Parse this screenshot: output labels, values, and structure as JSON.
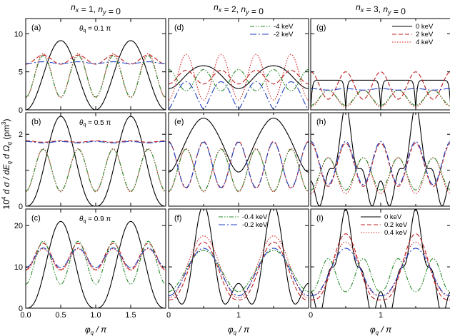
{
  "chart_data": {
    "type": "line",
    "rows": 3,
    "cols": 3,
    "column_titles": [
      "n_x = 1,  n_y = 0",
      "n_x = 2,  n_y = 0",
      "n_x = 3,  n_y = 0"
    ],
    "xlabel": "φ_q / π",
    "ylabel": "10^4 d σ / dE_q d Ω_q (pm^3)",
    "xlim": [
      0,
      2
    ],
    "xticks_col0": [
      "0.0",
      "0.5",
      "1.0",
      "1.5"
    ],
    "xticks_other": [
      "0",
      "1"
    ],
    "grid": false,
    "series_styles": [
      {
        "color": "#000000",
        "dash": ""
      },
      {
        "color": "#c02020",
        "dash": "6,3"
      },
      {
        "color": "#d02020",
        "dash": "1.5,2"
      },
      {
        "color": "#2a8a2a",
        "dash": "6,2,1.5,2,1.5,2"
      },
      {
        "color": "#2040c0",
        "dash": "9,3,2,3"
      }
    ],
    "rows_data": [
      {
        "ylim": [
          0,
          12
        ],
        "yticks": [
          0,
          5,
          10
        ],
        "annotation": "θ_q = 0.1 π",
        "legend": {
          "col": 1,
          "position": "top-right",
          "entries": [
            {
              "series": 3,
              "label": "-4 keV"
            },
            {
              "series": 4,
              "label": "-2 keV"
            }
          ]
        },
        "legend2": {
          "col": 2,
          "position": "top-right",
          "entries": [
            {
              "series": 0,
              "label": "0 keV"
            },
            {
              "series": 1,
              "label": "2 keV"
            },
            {
              "series": 2,
              "label": "4 keV"
            }
          ]
        }
      },
      {
        "ylim": [
          0,
          2.6
        ],
        "yticks": [
          0,
          1,
          2
        ],
        "yticklabels": [
          "0",
          "",
          "2"
        ],
        "annotation": "θ_q = 0.5 π"
      },
      {
        "ylim": [
          0,
          24
        ],
        "yticks": [
          0,
          10,
          20
        ],
        "annotation": "θ_q = 0.9 π",
        "legend": {
          "col": 1,
          "position": "top-center",
          "entries": [
            {
              "series": 3,
              "label": "-0.4 keV"
            },
            {
              "series": 4,
              "label": "-0.2 keV"
            }
          ]
        },
        "legend2": {
          "col": 2,
          "position": "top-center",
          "entries": [
            {
              "series": 0,
              "label": "0 keV"
            },
            {
              "series": 1,
              "label": "0.2 keV"
            },
            {
              "series": 2,
              "label": "0.4 keV"
            }
          ]
        }
      }
    ],
    "panels": [
      {
        "label": "(a)",
        "row": 0,
        "col": 0,
        "series": [
          {
            "type": "lobe",
            "n": 2,
            "base": 0,
            "amp": 9.1,
            "p": 1
          },
          {
            "type": "wave",
            "mean": 6.6,
            "amp": 0.6,
            "k": 4,
            "ph": 3.1416
          },
          {
            "type": "wave",
            "mean": 4.5,
            "amp": 2.9,
            "k": 4,
            "ph": 3.1416
          },
          {
            "type": "wave",
            "mean": 4.4,
            "amp": 2.7,
            "k": 4,
            "ph": 3.1416
          },
          {
            "type": "wave",
            "mean": 6.2,
            "amp": 0.12,
            "k": 4,
            "ph": 3.1416
          }
        ]
      },
      {
        "label": "(d)",
        "row": 0,
        "col": 1,
        "series": [
          {
            "type": "blend",
            "parts": [
              {
                "type": "lobe",
                "n": 2,
                "base": 3.0,
                "amp": 3.0,
                "p": 2
              },
              {
                "type": "wave",
                "mean": 0.3,
                "amp": 0.5,
                "k": 4,
                "ph": 3.1416
              }
            ]
          },
          {
            "type": "wave",
            "mean": 4.3,
            "amp": 0.9,
            "k": 4,
            "ph": 3.1416
          },
          {
            "type": "wave",
            "mean": 4.3,
            "amp": 3.0,
            "k": 4,
            "ph": 3.1416
          },
          {
            "type": "wave",
            "mean": 3.9,
            "amp": 1.4,
            "k": 4,
            "ph": 0
          },
          {
            "type": "lobe",
            "n": 4,
            "base": 0.1,
            "amp": 3.6,
            "p": 0.7
          }
        ]
      },
      {
        "label": "(g)",
        "row": 0,
        "col": 2,
        "series": [
          {
            "type": "plateau",
            "base": 0.2,
            "top": 3.9,
            "k": 4,
            "sharp": 6
          },
          {
            "type": "wave",
            "mean": 3.2,
            "amp": 1.8,
            "k": 4,
            "ph": 0
          },
          {
            "type": "wave",
            "mean": 1.5,
            "amp": 1.1,
            "k": 4,
            "ph": 3.1416
          },
          {
            "type": "wave",
            "mean": 1.6,
            "amp": 1.0,
            "k": 4,
            "ph": 3.1416
          },
          {
            "type": "wave",
            "mean": 2.7,
            "amp": 0.1,
            "k": 4,
            "ph": 0
          }
        ]
      },
      {
        "label": "(b)",
        "row": 1,
        "col": 0,
        "series": [
          {
            "type": "lobe",
            "n": 2,
            "base": 0,
            "amp": 2.5,
            "p": 1.3
          },
          {
            "type": "wave",
            "mean": 1.8,
            "amp": 0.02,
            "k": 4,
            "ph": 0
          },
          {
            "type": "wave",
            "mean": 1.0,
            "amp": 0.6,
            "k": 4,
            "ph": 3.1416
          },
          {
            "type": "wave",
            "mean": 1.0,
            "amp": 0.58,
            "k": 4,
            "ph": 3.1416
          },
          {
            "type": "wave",
            "mean": 1.78,
            "amp": 0.02,
            "k": 4,
            "ph": 0
          }
        ]
      },
      {
        "label": "(e)",
        "row": 1,
        "col": 1,
        "series": [
          {
            "type": "blend",
            "parts": [
              {
                "type": "lobe",
                "n": 2,
                "base": 1.0,
                "amp": 1.5,
                "p": 2.5
              },
              {
                "type": "wave",
                "mean": 0.25,
                "amp": 0.3,
                "k": 4,
                "ph": 3.1416
              }
            ]
          },
          {
            "type": "wave",
            "mean": 1.15,
            "amp": 0.65,
            "k": 4,
            "ph": 0
          },
          {
            "type": "wave",
            "mean": 1.0,
            "amp": 0.6,
            "k": 4,
            "ph": 3.1416
          },
          {
            "type": "wave",
            "mean": 1.0,
            "amp": 0.58,
            "k": 4,
            "ph": 3.1416
          },
          {
            "type": "wave",
            "mean": 1.15,
            "amp": 0.63,
            "k": 4,
            "ph": 0
          }
        ]
      },
      {
        "label": "(h)",
        "row": 1,
        "col": 2,
        "series": [
          {
            "type": "blend",
            "parts": [
              {
                "type": "lobe",
                "n": 2,
                "base": 0.35,
                "amp": 2.1,
                "p": 3
              },
              {
                "type": "wave",
                "mean": 0.0,
                "amp": 0.35,
                "k": 8,
                "ph": 0
              }
            ]
          },
          {
            "type": "wave",
            "mean": 1.15,
            "amp": 0.6,
            "k": 4,
            "ph": 0
          },
          {
            "type": "wave",
            "mean": 0.85,
            "amp": 0.5,
            "k": 4,
            "ph": 3.1416
          },
          {
            "type": "wave",
            "mean": 0.9,
            "amp": 0.45,
            "k": 4,
            "ph": 3.1416
          },
          {
            "type": "wave",
            "mean": 1.2,
            "amp": 0.6,
            "k": 4,
            "ph": 0
          }
        ]
      },
      {
        "label": "(c)",
        "row": 2,
        "col": 0,
        "series": [
          {
            "type": "lobe",
            "n": 2,
            "base": 0,
            "amp": 21,
            "p": 1.4
          },
          {
            "type": "wave",
            "mean": 12.5,
            "amp": 3.2,
            "k": 4,
            "ph": 3.1416
          },
          {
            "type": "wave",
            "mean": 11.8,
            "amp": 2.6,
            "k": 4,
            "ph": 3.1416
          },
          {
            "type": "wave",
            "mean": 11.0,
            "amp": 5.2,
            "k": 4,
            "ph": 3.1416
          },
          {
            "type": "wave",
            "mean": 12.2,
            "amp": 2.4,
            "k": 4,
            "ph": 3.1416
          }
        ]
      },
      {
        "label": "(f)",
        "row": 2,
        "col": 1,
        "series": [
          {
            "type": "blend",
            "parts": [
              {
                "type": "lobe",
                "n": 2,
                "base": 2.0,
                "amp": 19,
                "p": 2
              },
              {
                "type": "wave",
                "mean": 0.0,
                "amp": 4,
                "k": 4,
                "ph": 0
              }
            ]
          },
          {
            "type": "lobe",
            "n": 2,
            "base": 2.0,
            "amp": 14,
            "p": 1.3
          },
          {
            "type": "lobe",
            "n": 2,
            "base": 2.5,
            "amp": 15,
            "p": 1.1
          },
          {
            "type": "lobe",
            "n": 2,
            "base": 4.0,
            "amp": 10,
            "p": 0.9
          },
          {
            "type": "lobe",
            "n": 2,
            "base": 3.0,
            "amp": 11.5,
            "p": 1.0
          }
        ]
      },
      {
        "label": "(i)",
        "row": 2,
        "col": 2,
        "series": [
          {
            "type": "blend",
            "parts": [
              {
                "type": "lobe",
                "n": 2,
                "base": 1.0,
                "amp": 20,
                "p": 2.2
              },
              {
                "type": "wave",
                "mean": 0.0,
                "amp": 3,
                "k": 8,
                "ph": 0
              }
            ]
          },
          {
            "type": "lobe",
            "n": 2,
            "base": 2.0,
            "amp": 16,
            "p": 1.6
          },
          {
            "type": "lobe",
            "n": 2,
            "base": 3.0,
            "amp": 13,
            "p": 1.4
          },
          {
            "type": "lobe",
            "n": 4,
            "base": 4.0,
            "amp": 8,
            "p": 1.2
          },
          {
            "type": "lobe",
            "n": 2,
            "base": 3.0,
            "amp": 11.5,
            "p": 1.2
          }
        ]
      }
    ]
  }
}
